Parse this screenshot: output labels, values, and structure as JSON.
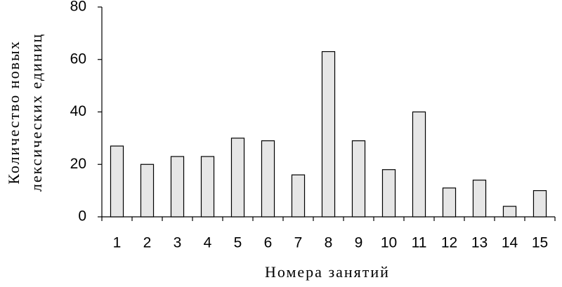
{
  "chart_data": {
    "type": "bar",
    "ylabel": [
      "Количество новых",
      "лексических единиц"
    ],
    "xlabel": "Номера занятий",
    "categories": [
      "1",
      "2",
      "3",
      "4",
      "5",
      "6",
      "7",
      "8",
      "9",
      "10",
      "11",
      "12",
      "13",
      "14",
      "15"
    ],
    "values": [
      27,
      20,
      23,
      23,
      30,
      29,
      16,
      63,
      29,
      18,
      40,
      11,
      14,
      4,
      10
    ],
    "color": "#e6e6e6",
    "ylim": [
      0,
      80
    ],
    "yticks": [
      0,
      20,
      40,
      60,
      80
    ],
    "grid": false
  }
}
